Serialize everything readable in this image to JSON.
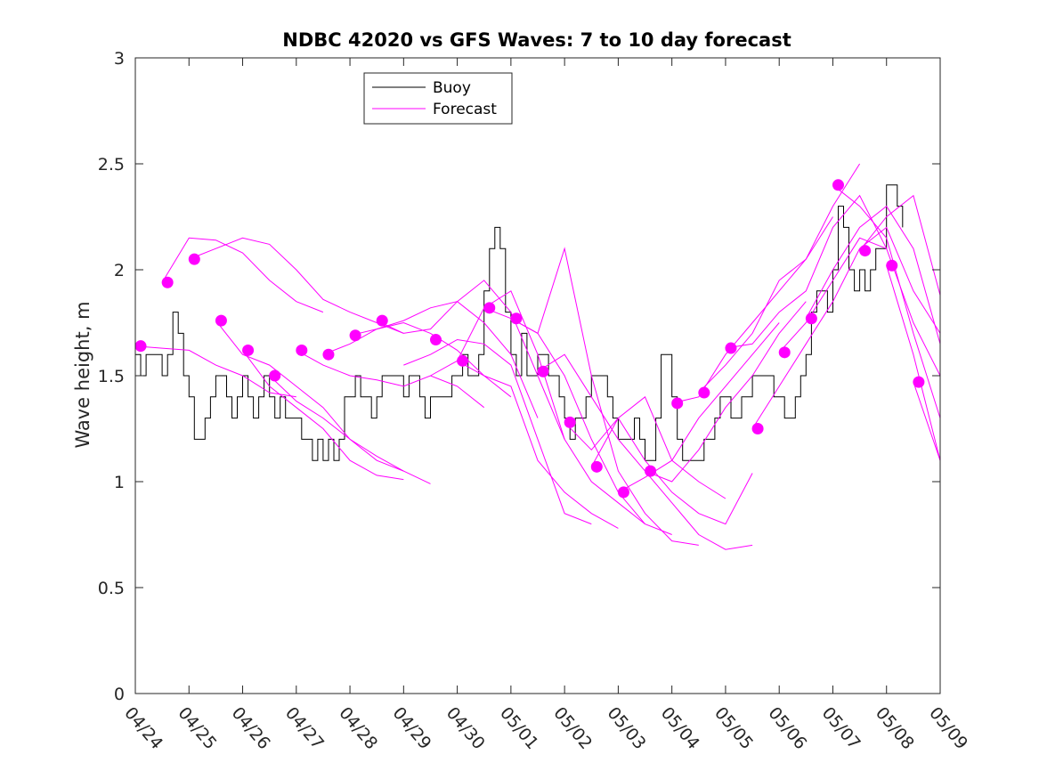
{
  "chart_data": {
    "type": "line",
    "title": "NDBC 42020 vs GFS Waves: 7 to 10 day forecast",
    "xlabel": "",
    "ylabel": "Wave height, m",
    "xlim": [
      0,
      15
    ],
    "ylim": [
      0,
      3
    ],
    "x_ticks": [
      "04/24",
      "04/25",
      "04/26",
      "04/27",
      "04/28",
      "04/29",
      "04/30",
      "05/01",
      "05/02",
      "05/03",
      "05/04",
      "05/05",
      "05/06",
      "05/07",
      "05/08",
      "05/09"
    ],
    "y_ticks": [
      0,
      0.5,
      1,
      1.5,
      2,
      2.5,
      3
    ],
    "y_tick_labels": [
      "0",
      "0.5",
      "1",
      "1.5",
      "2",
      "2.5",
      "3"
    ],
    "legend": {
      "placement": "top-left inside",
      "entries": [
        "Buoy",
        "Forecast"
      ]
    },
    "colors": {
      "buoy": "#000000",
      "forecast": "#ff00ff",
      "axes": "#262626"
    },
    "grid": false,
    "series": [
      {
        "name": "Buoy",
        "x": [
          0,
          0.1,
          0.2,
          0.3,
          0.4,
          0.5,
          0.6,
          0.7,
          0.8,
          0.9,
          1.0,
          1.1,
          1.2,
          1.3,
          1.4,
          1.5,
          1.6,
          1.7,
          1.8,
          1.9,
          2.0,
          2.1,
          2.2,
          2.3,
          2.4,
          2.5,
          2.6,
          2.7,
          2.8,
          2.9,
          3.0,
          3.1,
          3.2,
          3.3,
          3.4,
          3.5,
          3.6,
          3.7,
          3.8,
          3.9,
          4.0,
          4.1,
          4.2,
          4.3,
          4.4,
          4.5,
          4.6,
          4.7,
          4.8,
          4.9,
          5.0,
          5.1,
          5.2,
          5.3,
          5.4,
          5.5,
          5.6,
          5.7,
          5.8,
          5.9,
          6.0,
          6.1,
          6.2,
          6.3,
          6.4,
          6.5,
          6.6,
          6.7,
          6.8,
          6.9,
          7.0,
          7.1,
          7.2,
          7.3,
          7.4,
          7.5,
          7.6,
          7.7,
          7.8,
          7.9,
          8.0,
          8.1,
          8.2,
          8.3,
          8.4,
          8.5,
          8.6,
          8.7,
          8.8,
          8.9,
          9.0,
          9.1,
          9.2,
          9.3,
          9.4,
          9.5,
          9.6,
          9.7,
          9.8,
          9.9,
          10.0,
          10.1,
          10.2,
          10.3,
          10.4,
          10.5,
          10.6,
          10.7,
          10.8,
          10.9,
          11.0,
          11.1,
          11.2,
          11.3,
          11.4,
          11.5,
          11.6,
          11.7,
          11.8,
          11.9,
          12.0,
          12.1,
          12.2,
          12.3,
          12.4,
          12.5,
          12.6,
          12.7,
          12.8,
          12.9,
          13.0,
          13.1,
          13.2,
          13.3,
          13.4,
          13.5,
          13.6,
          13.7,
          13.8,
          13.9,
          14.0,
          14.1,
          14.2,
          14.3
        ],
        "y": [
          1.6,
          1.5,
          1.6,
          1.6,
          1.6,
          1.5,
          1.6,
          1.8,
          1.7,
          1.5,
          1.4,
          1.2,
          1.2,
          1.3,
          1.4,
          1.5,
          1.5,
          1.4,
          1.3,
          1.4,
          1.5,
          1.4,
          1.3,
          1.4,
          1.5,
          1.4,
          1.3,
          1.4,
          1.3,
          1.3,
          1.3,
          1.2,
          1.2,
          1.1,
          1.2,
          1.1,
          1.2,
          1.1,
          1.2,
          1.4,
          1.4,
          1.5,
          1.4,
          1.4,
          1.3,
          1.4,
          1.5,
          1.5,
          1.5,
          1.5,
          1.4,
          1.5,
          1.5,
          1.4,
          1.3,
          1.4,
          1.4,
          1.4,
          1.4,
          1.5,
          1.5,
          1.6,
          1.5,
          1.5,
          1.6,
          1.9,
          2.1,
          2.2,
          2.1,
          1.8,
          1.6,
          1.5,
          1.7,
          1.5,
          1.5,
          1.6,
          1.6,
          1.5,
          1.5,
          1.4,
          1.3,
          1.2,
          1.3,
          1.3,
          1.4,
          1.5,
          1.5,
          1.5,
          1.4,
          1.3,
          1.2,
          1.2,
          1.2,
          1.3,
          1.2,
          1.1,
          1.1,
          1.3,
          1.6,
          1.6,
          1.4,
          1.2,
          1.1,
          1.1,
          1.1,
          1.1,
          1.2,
          1.2,
          1.3,
          1.4,
          1.4,
          1.3,
          1.3,
          1.4,
          1.4,
          1.5,
          1.5,
          1.5,
          1.5,
          1.4,
          1.4,
          1.3,
          1.3,
          1.4,
          1.5,
          1.6,
          1.8,
          1.9,
          1.9,
          1.8,
          2.0,
          2.3,
          2.2,
          2.0,
          1.9,
          2.0,
          1.9,
          2.0,
          2.1,
          2.1,
          2.4,
          2.4,
          2.3,
          2.2
        ]
      },
      {
        "name": "Forecast",
        "x": [
          0,
          0.5,
          1.0,
          1.5,
          2.0,
          2.5,
          3.0
        ],
        "y": [
          1.64,
          1.63,
          1.62,
          1.55,
          1.5,
          1.42,
          1.4
        ]
      },
      {
        "name": "Forecast",
        "x": [
          0.5,
          1.0,
          1.5,
          2.0,
          2.5,
          3.0,
          3.5
        ],
        "y": [
          1.94,
          2.15,
          2.14,
          2.08,
          1.95,
          1.85,
          1.8
        ]
      },
      {
        "name": "Forecast",
        "x": [
          1.0,
          1.5,
          2.0,
          2.5,
          3.0,
          3.5,
          4.0,
          4.5,
          5.0
        ],
        "y": [
          2.05,
          2.1,
          2.15,
          2.12,
          2.0,
          1.86,
          1.8,
          1.75,
          1.7
        ]
      },
      {
        "name": "Forecast",
        "x": [
          1.5,
          2.0,
          2.5,
          3.0,
          3.5,
          4.0,
          4.5,
          5.0
        ],
        "y": [
          1.76,
          1.6,
          1.55,
          1.45,
          1.35,
          1.2,
          1.1,
          1.05
        ]
      },
      {
        "name": "Forecast",
        "x": [
          2.0,
          2.5,
          3.0,
          3.5,
          4.0,
          4.5,
          5.0
        ],
        "y": [
          1.62,
          1.45,
          1.35,
          1.25,
          1.1,
          1.03,
          1.01
        ]
      },
      {
        "name": "Forecast",
        "x": [
          2.5,
          3.0,
          3.5,
          4.0,
          4.5,
          5.0,
          5.5
        ],
        "y": [
          1.5,
          1.38,
          1.3,
          1.2,
          1.12,
          1.05,
          0.99
        ]
      },
      {
        "name": "Forecast",
        "x": [
          3.0,
          3.5,
          4.0,
          4.5,
          5.0,
          5.5,
          6.0,
          6.5
        ],
        "y": [
          1.62,
          1.55,
          1.5,
          1.48,
          1.45,
          1.5,
          1.45,
          1.35
        ]
      },
      {
        "name": "Forecast",
        "x": [
          3.5,
          4.0,
          4.5,
          5.0,
          5.5,
          6.0,
          6.5,
          7.0
        ],
        "y": [
          1.6,
          1.65,
          1.72,
          1.75,
          1.7,
          1.62,
          1.5,
          1.4
        ]
      },
      {
        "name": "Forecast",
        "x": [
          4.0,
          4.5,
          5.0,
          5.5,
          6.0,
          6.5,
          7.0,
          7.5
        ],
        "y": [
          1.69,
          1.72,
          1.76,
          1.82,
          1.85,
          1.75,
          1.6,
          1.3
        ]
      },
      {
        "name": "Forecast",
        "x": [
          4.5,
          5.0,
          5.5,
          6.0,
          6.5,
          7.0,
          7.5,
          8.0
        ],
        "y": [
          1.76,
          1.7,
          1.72,
          1.85,
          1.95,
          1.8,
          1.5,
          1.2
        ]
      },
      {
        "name": "Forecast",
        "x": [
          5.0,
          5.5,
          6.0,
          6.5,
          7.0,
          7.5,
          8.0,
          8.5
        ],
        "y": [
          1.55,
          1.6,
          1.67,
          1.65,
          1.55,
          1.2,
          0.85,
          0.8
        ]
      },
      {
        "name": "Forecast",
        "x": [
          5.5,
          6.0,
          6.5,
          7.0,
          7.5,
          8.0,
          8.5,
          9.0
        ],
        "y": [
          1.5,
          1.57,
          1.5,
          1.45,
          1.1,
          0.95,
          0.85,
          0.78
        ]
      },
      {
        "name": "Forecast",
        "x": [
          6.0,
          6.5,
          7.0,
          7.5,
          8.0,
          8.5,
          9.0,
          9.5
        ],
        "y": [
          1.57,
          1.82,
          1.9,
          1.6,
          1.2,
          1.0,
          0.9,
          0.8
        ]
      },
      {
        "name": "Forecast",
        "x": [
          6.5,
          7.0,
          7.5,
          8.0,
          8.5,
          9.0,
          9.5,
          10.0
        ],
        "y": [
          1.82,
          1.77,
          1.7,
          1.5,
          1.2,
          0.95,
          0.8,
          0.75
        ]
      },
      {
        "name": "Forecast",
        "x": [
          7.0,
          7.5,
          8.0,
          8.5,
          9.0,
          9.5,
          10.0,
          10.5
        ],
        "y": [
          1.77,
          1.7,
          2.1,
          1.5,
          1.05,
          0.85,
          0.72,
          0.7
        ]
      },
      {
        "name": "Forecast",
        "x": [
          7.5,
          8.0,
          8.5,
          9.0,
          9.5,
          10.0,
          10.5,
          11.0,
          11.5
        ],
        "y": [
          1.52,
          1.6,
          1.4,
          1.2,
          1.05,
          0.9,
          0.75,
          0.68,
          0.7
        ]
      },
      {
        "name": "Forecast",
        "x": [
          8.0,
          8.5,
          9.0,
          9.5,
          10.0,
          10.5,
          11.0,
          11.5
        ],
        "y": [
          1.28,
          1.15,
          1.3,
          1.1,
          0.95,
          0.85,
          0.8,
          1.04
        ]
      },
      {
        "name": "Forecast",
        "x": [
          8.5,
          9.0,
          9.5,
          10.0,
          10.5,
          11.0
        ],
        "y": [
          1.07,
          1.3,
          1.4,
          1.1,
          1.0,
          0.92
        ]
      },
      {
        "name": "Forecast",
        "x": [
          9.0,
          9.5,
          10.0,
          10.5,
          11.0,
          11.5,
          12.0
        ],
        "y": [
          0.95,
          1.02,
          1.1,
          1.3,
          1.45,
          1.6,
          1.75
        ]
      },
      {
        "name": "Forecast",
        "x": [
          9.5,
          10.0,
          10.5,
          11.0,
          11.5,
          12.0,
          12.5
        ],
        "y": [
          1.05,
          1.0,
          1.15,
          1.35,
          1.5,
          1.7,
          1.85
        ]
      },
      {
        "name": "Forecast",
        "x": [
          10.0,
          10.5,
          11.0,
          11.5,
          12.0,
          12.5,
          13.0
        ],
        "y": [
          1.37,
          1.4,
          1.6,
          1.75,
          1.9,
          2.05,
          2.25
        ]
      },
      {
        "name": "Forecast",
        "x": [
          10.5,
          11.0,
          11.5,
          12.0,
          12.5,
          13.0,
          13.5
        ],
        "y": [
          1.42,
          1.55,
          1.7,
          1.95,
          2.05,
          2.3,
          2.5
        ]
      },
      {
        "name": "Forecast",
        "x": [
          11.0,
          11.5,
          12.0,
          12.5,
          13.0,
          13.5,
          14.0
        ],
        "y": [
          1.63,
          1.65,
          1.8,
          1.9,
          2.2,
          2.35,
          2.1
        ]
      },
      {
        "name": "Forecast",
        "x": [
          11.5,
          12.0,
          12.5,
          13.0,
          13.5,
          14.0,
          14.5,
          15.0
        ],
        "y": [
          1.25,
          1.45,
          1.65,
          1.85,
          2.1,
          2.2,
          1.9,
          1.7
        ]
      },
      {
        "name": "Forecast",
        "x": [
          12.0,
          12.5,
          13.0,
          13.5,
          14.0,
          14.5,
          15.0
        ],
        "y": [
          1.61,
          1.75,
          1.95,
          2.15,
          2.1,
          1.75,
          1.5
        ]
      },
      {
        "name": "Forecast",
        "x": [
          12.5,
          13.0,
          13.5,
          14.0,
          14.5,
          15.0
        ],
        "y": [
          1.77,
          2.0,
          2.2,
          2.3,
          2.1,
          1.65
        ]
      },
      {
        "name": "Forecast",
        "x": [
          13.0,
          13.5,
          14.0,
          14.5,
          15.0
        ],
        "y": [
          2.4,
          2.3,
          2.15,
          1.7,
          1.3
        ]
      },
      {
        "name": "Forecast",
        "x": [
          13.5,
          14.0,
          14.5,
          15.0
        ],
        "y": [
          2.09,
          2.25,
          2.35,
          1.88
        ]
      },
      {
        "name": "Forecast",
        "x": [
          14.0,
          14.5,
          15.0
        ],
        "y": [
          2.02,
          1.6,
          1.1
        ]
      },
      {
        "name": "Forecast",
        "x": [
          14.5,
          15.0
        ],
        "y": [
          1.47,
          1.1
        ]
      }
    ],
    "forecast_markers": {
      "x": [
        0.1,
        0.6,
        1.1,
        1.6,
        2.1,
        2.6,
        3.1,
        3.6,
        4.1,
        4.6,
        5.6,
        6.1,
        6.6,
        7.1,
        7.6,
        8.1,
        8.6,
        9.1,
        9.6,
        10.1,
        10.6,
        11.1,
        11.6,
        12.1,
        12.6,
        13.1,
        13.6,
        14.1,
        14.6
      ],
      "y": [
        1.64,
        1.94,
        2.05,
        1.76,
        1.62,
        1.5,
        1.62,
        1.6,
        1.69,
        1.76,
        1.67,
        1.57,
        1.82,
        1.77,
        1.52,
        1.28,
        1.07,
        0.95,
        1.05,
        1.37,
        1.42,
        1.63,
        1.25,
        1.61,
        1.77,
        2.4,
        2.09,
        2.02,
        1.47
      ]
    }
  }
}
